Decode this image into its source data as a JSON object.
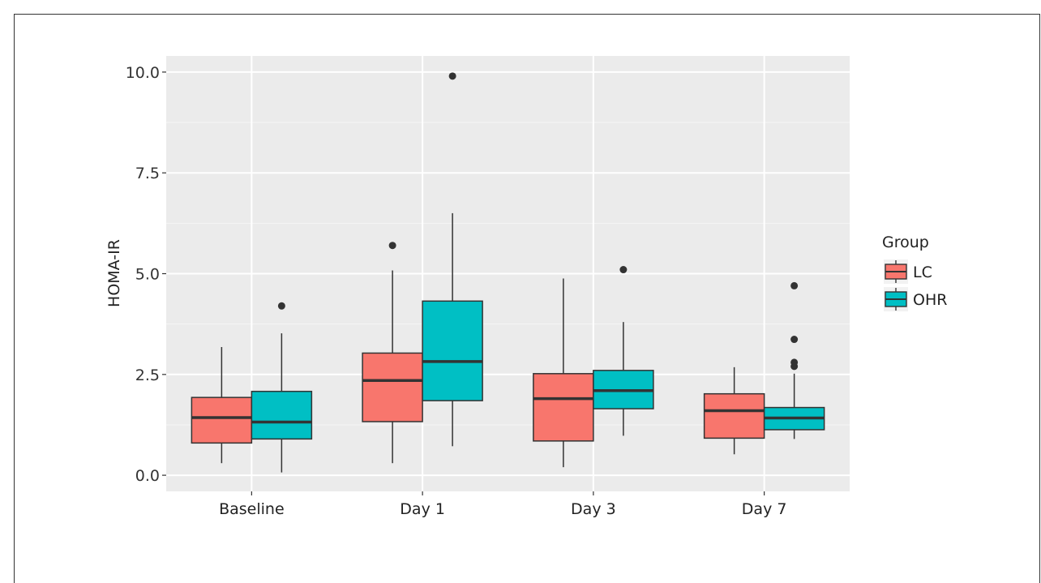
{
  "chart_data": {
    "type": "boxplot",
    "ylabel": "HOMA-IR",
    "ylim": [
      -0.4,
      10.4
    ],
    "yticks": [
      0.0,
      2.5,
      5.0,
      7.5,
      10.0
    ],
    "ytick_labels": [
      "0.0",
      "2.5",
      "5.0",
      "7.5",
      "10.0"
    ],
    "categories": [
      "Baseline",
      "Day 1",
      "Day 3",
      "Day 7"
    ],
    "grid": true,
    "legend": {
      "title": "Group",
      "position": "right"
    },
    "series": [
      {
        "name": "LC",
        "color": "#F8766D",
        "boxes": [
          {
            "min": 0.3,
            "q1": 0.8,
            "median": 1.43,
            "q3": 1.93,
            "max": 3.18,
            "outliers": []
          },
          {
            "min": 0.3,
            "q1": 1.33,
            "median": 2.35,
            "q3": 3.03,
            "max": 5.08,
            "outliers": [
              5.7
            ]
          },
          {
            "min": 0.2,
            "q1": 0.85,
            "median": 1.9,
            "q3": 2.52,
            "max": 4.88,
            "outliers": []
          },
          {
            "min": 0.52,
            "q1": 0.92,
            "median": 1.6,
            "q3": 2.02,
            "max": 2.68,
            "outliers": []
          }
        ]
      },
      {
        "name": "OHR",
        "color": "#00BFC4",
        "boxes": [
          {
            "min": 0.07,
            "q1": 0.9,
            "median": 1.32,
            "q3": 2.08,
            "max": 3.52,
            "outliers": [
              4.2
            ]
          },
          {
            "min": 0.72,
            "q1": 1.85,
            "median": 2.82,
            "q3": 4.32,
            "max": 6.5,
            "outliers": [
              9.9
            ]
          },
          {
            "min": 0.98,
            "q1": 1.65,
            "median": 2.1,
            "q3": 2.6,
            "max": 3.8,
            "outliers": [
              5.1
            ]
          },
          {
            "min": 0.9,
            "q1": 1.13,
            "median": 1.42,
            "q3": 1.68,
            "max": 2.52,
            "outliers": [
              2.7,
              2.8,
              3.37,
              4.7
            ]
          }
        ]
      }
    ]
  }
}
